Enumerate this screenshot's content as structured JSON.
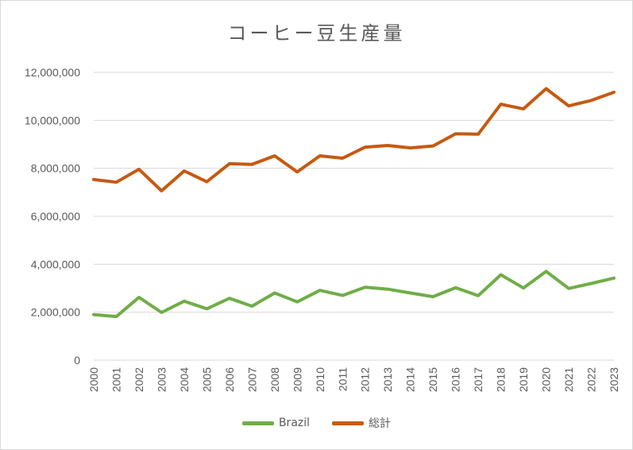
{
  "chart_data": {
    "type": "line",
    "title": "コーヒー豆生産量",
    "xlabel": "",
    "ylabel": "",
    "x": [
      "2000",
      "2001",
      "2002",
      "2003",
      "2004",
      "2005",
      "2006",
      "2007",
      "2008",
      "2009",
      "2010",
      "2011",
      "2012",
      "2013",
      "2014",
      "2015",
      "2016",
      "2017",
      "2018",
      "2019",
      "2020",
      "2021",
      "2022",
      "2023"
    ],
    "ylim": [
      0,
      12000000
    ],
    "yticks": [
      0,
      2000000,
      4000000,
      6000000,
      8000000,
      10000000,
      12000000
    ],
    "ytick_labels": [
      "0",
      "2,000,000",
      "4,000,000",
      "6,000,000",
      "8,000,000",
      "10,000,000",
      "12,000,000"
    ],
    "grid": true,
    "legend_position": "bottom",
    "series": [
      {
        "name": "Brazil",
        "color": "#70ad47",
        "values": [
          1900000,
          1820000,
          2620000,
          1990000,
          2460000,
          2140000,
          2580000,
          2250000,
          2800000,
          2430000,
          2910000,
          2700000,
          3040000,
          2960000,
          2800000,
          2650000,
          3020000,
          2690000,
          3560000,
          3010000,
          3700000,
          2990000,
          3200000,
          3420000
        ]
      },
      {
        "name": "総計",
        "color": "#c55a11",
        "values": [
          7530000,
          7420000,
          7960000,
          7060000,
          7890000,
          7440000,
          8190000,
          8160000,
          8520000,
          7850000,
          8520000,
          8420000,
          8880000,
          8950000,
          8850000,
          8930000,
          9440000,
          9420000,
          10670000,
          10480000,
          11320000,
          10600000,
          10830000,
          11170000
        ]
      }
    ]
  }
}
